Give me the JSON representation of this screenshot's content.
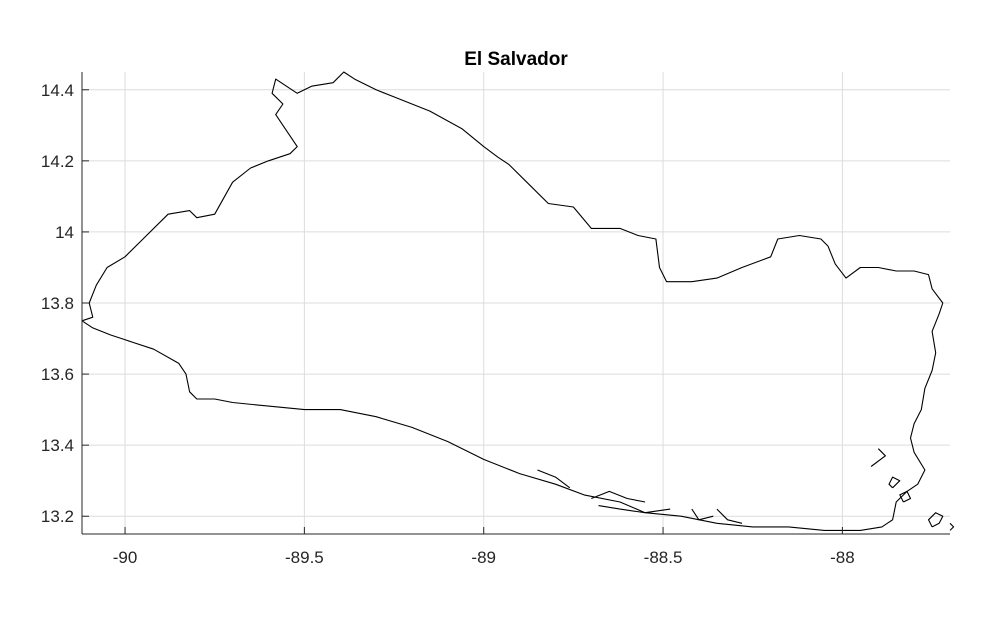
{
  "chart_data": {
    "type": "map",
    "title": "El Salvador",
    "xlim": [
      -90.12,
      -87.7
    ],
    "ylim": [
      13.15,
      14.45
    ],
    "xticks": [
      -90,
      -89.5,
      -89,
      -88.5,
      -88
    ],
    "xtick_labels": [
      "-90",
      "-89.5",
      "-89",
      "-88.5",
      "-88"
    ],
    "yticks": [
      13.2,
      13.4,
      13.6,
      13.8,
      14.0,
      14.2,
      14.4
    ],
    "ytick_labels": [
      "13.2",
      "13.4",
      "13.6",
      "13.8",
      "14",
      "14.2",
      "14.4"
    ],
    "grid": true,
    "outline_color": "#000000",
    "outline": [
      [
        -90.12,
        13.75
      ],
      [
        -90.09,
        13.73
      ],
      [
        -90.04,
        13.71
      ],
      [
        -89.98,
        13.69
      ],
      [
        -89.92,
        13.67
      ],
      [
        -89.85,
        13.63
      ],
      [
        -89.83,
        13.6
      ],
      [
        -89.82,
        13.55
      ],
      [
        -89.8,
        13.53
      ],
      [
        -89.75,
        13.53
      ],
      [
        -89.7,
        13.52
      ],
      [
        -89.6,
        13.51
      ],
      [
        -89.5,
        13.5
      ],
      [
        -89.4,
        13.5
      ],
      [
        -89.3,
        13.48
      ],
      [
        -89.2,
        13.45
      ],
      [
        -89.1,
        13.41
      ],
      [
        -89.0,
        13.36
      ],
      [
        -88.9,
        13.32
      ],
      [
        -88.8,
        13.29
      ],
      [
        -88.72,
        13.26
      ],
      [
        -88.62,
        13.24
      ],
      [
        -88.55,
        13.21
      ],
      [
        -88.45,
        13.2
      ],
      [
        -88.35,
        13.18
      ],
      [
        -88.25,
        13.17
      ],
      [
        -88.15,
        13.17
      ],
      [
        -88.05,
        13.16
      ],
      [
        -87.95,
        13.16
      ],
      [
        -87.89,
        13.17
      ],
      [
        -87.86,
        13.19
      ],
      [
        -87.85,
        13.24
      ],
      [
        -87.82,
        13.27
      ],
      [
        -87.79,
        13.29
      ],
      [
        -87.77,
        13.33
      ],
      [
        -87.8,
        13.38
      ],
      [
        -87.81,
        13.42
      ],
      [
        -87.8,
        13.46
      ],
      [
        -87.78,
        13.5
      ],
      [
        -87.77,
        13.56
      ],
      [
        -87.75,
        13.61
      ],
      [
        -87.74,
        13.66
      ],
      [
        -87.75,
        13.72
      ],
      [
        -87.73,
        13.77
      ],
      [
        -87.72,
        13.8
      ],
      [
        -87.75,
        13.84
      ],
      [
        -87.76,
        13.88
      ],
      [
        -87.8,
        13.89
      ],
      [
        -87.85,
        13.89
      ],
      [
        -87.9,
        13.9
      ],
      [
        -87.95,
        13.9
      ],
      [
        -87.99,
        13.87
      ],
      [
        -88.02,
        13.91
      ],
      [
        -88.04,
        13.96
      ],
      [
        -88.06,
        13.98
      ],
      [
        -88.12,
        13.99
      ],
      [
        -88.18,
        13.98
      ],
      [
        -88.2,
        13.93
      ],
      [
        -88.28,
        13.9
      ],
      [
        -88.35,
        13.87
      ],
      [
        -88.42,
        13.86
      ],
      [
        -88.46,
        13.86
      ],
      [
        -88.49,
        13.86
      ],
      [
        -88.51,
        13.9
      ],
      [
        -88.52,
        13.98
      ],
      [
        -88.57,
        13.99
      ],
      [
        -88.62,
        14.01
      ],
      [
        -88.7,
        14.01
      ],
      [
        -88.75,
        14.07
      ],
      [
        -88.82,
        14.08
      ],
      [
        -88.88,
        14.14
      ],
      [
        -88.93,
        14.19
      ],
      [
        -88.96,
        14.21
      ],
      [
        -89.0,
        14.24
      ],
      [
        -89.06,
        14.29
      ],
      [
        -89.15,
        14.34
      ],
      [
        -89.25,
        14.38
      ],
      [
        -89.3,
        14.4
      ],
      [
        -89.36,
        14.43
      ],
      [
        -89.39,
        14.45
      ],
      [
        -89.42,
        14.42
      ],
      [
        -89.48,
        14.41
      ],
      [
        -89.52,
        14.39
      ],
      [
        -89.58,
        14.43
      ],
      [
        -89.59,
        14.39
      ],
      [
        -89.56,
        14.36
      ],
      [
        -89.58,
        14.33
      ],
      [
        -89.56,
        14.3
      ],
      [
        -89.52,
        14.24
      ],
      [
        -89.54,
        14.22
      ],
      [
        -89.6,
        14.2
      ],
      [
        -89.65,
        14.18
      ],
      [
        -89.7,
        14.14
      ],
      [
        -89.75,
        14.05
      ],
      [
        -89.8,
        14.04
      ],
      [
        -89.82,
        14.06
      ],
      [
        -89.88,
        14.05
      ],
      [
        -89.95,
        13.98
      ],
      [
        -90.0,
        13.93
      ],
      [
        -90.05,
        13.9
      ],
      [
        -90.08,
        13.85
      ],
      [
        -90.1,
        13.8
      ],
      [
        -90.09,
        13.76
      ],
      [
        -90.12,
        13.75
      ]
    ],
    "islands": [
      [
        [
          -87.92,
          13.34
        ],
        [
          -87.88,
          13.37
        ],
        [
          -87.9,
          13.39
        ]
      ],
      [
        [
          -87.86,
          13.28
        ],
        [
          -87.84,
          13.3
        ],
        [
          -87.86,
          13.31
        ],
        [
          -87.87,
          13.29
        ],
        [
          -87.86,
          13.28
        ]
      ],
      [
        [
          -87.83,
          13.24
        ],
        [
          -87.81,
          13.25
        ],
        [
          -87.82,
          13.27
        ],
        [
          -87.84,
          13.26
        ],
        [
          -87.83,
          13.24
        ]
      ],
      [
        [
          -87.75,
          13.17
        ],
        [
          -87.73,
          13.18
        ],
        [
          -87.72,
          13.2
        ],
        [
          -87.74,
          13.21
        ],
        [
          -87.76,
          13.19
        ],
        [
          -87.75,
          13.17
        ]
      ],
      [
        [
          -87.7,
          13.16
        ],
        [
          -87.69,
          13.17
        ],
        [
          -87.7,
          13.18
        ]
      ]
    ],
    "estuaries": [
      [
        [
          -88.7,
          13.25
        ],
        [
          -88.65,
          13.27
        ],
        [
          -88.6,
          13.25
        ],
        [
          -88.55,
          13.24
        ]
      ],
      [
        [
          -88.68,
          13.23
        ],
        [
          -88.62,
          13.22
        ],
        [
          -88.55,
          13.21
        ],
        [
          -88.48,
          13.22
        ]
      ],
      [
        [
          -88.85,
          13.33
        ],
        [
          -88.8,
          13.31
        ],
        [
          -88.76,
          13.28
        ]
      ],
      [
        [
          -88.42,
          13.22
        ],
        [
          -88.4,
          13.19
        ],
        [
          -88.36,
          13.2
        ]
      ],
      [
        [
          -88.35,
          13.22
        ],
        [
          -88.32,
          13.19
        ],
        [
          -88.28,
          13.18
        ]
      ]
    ]
  }
}
